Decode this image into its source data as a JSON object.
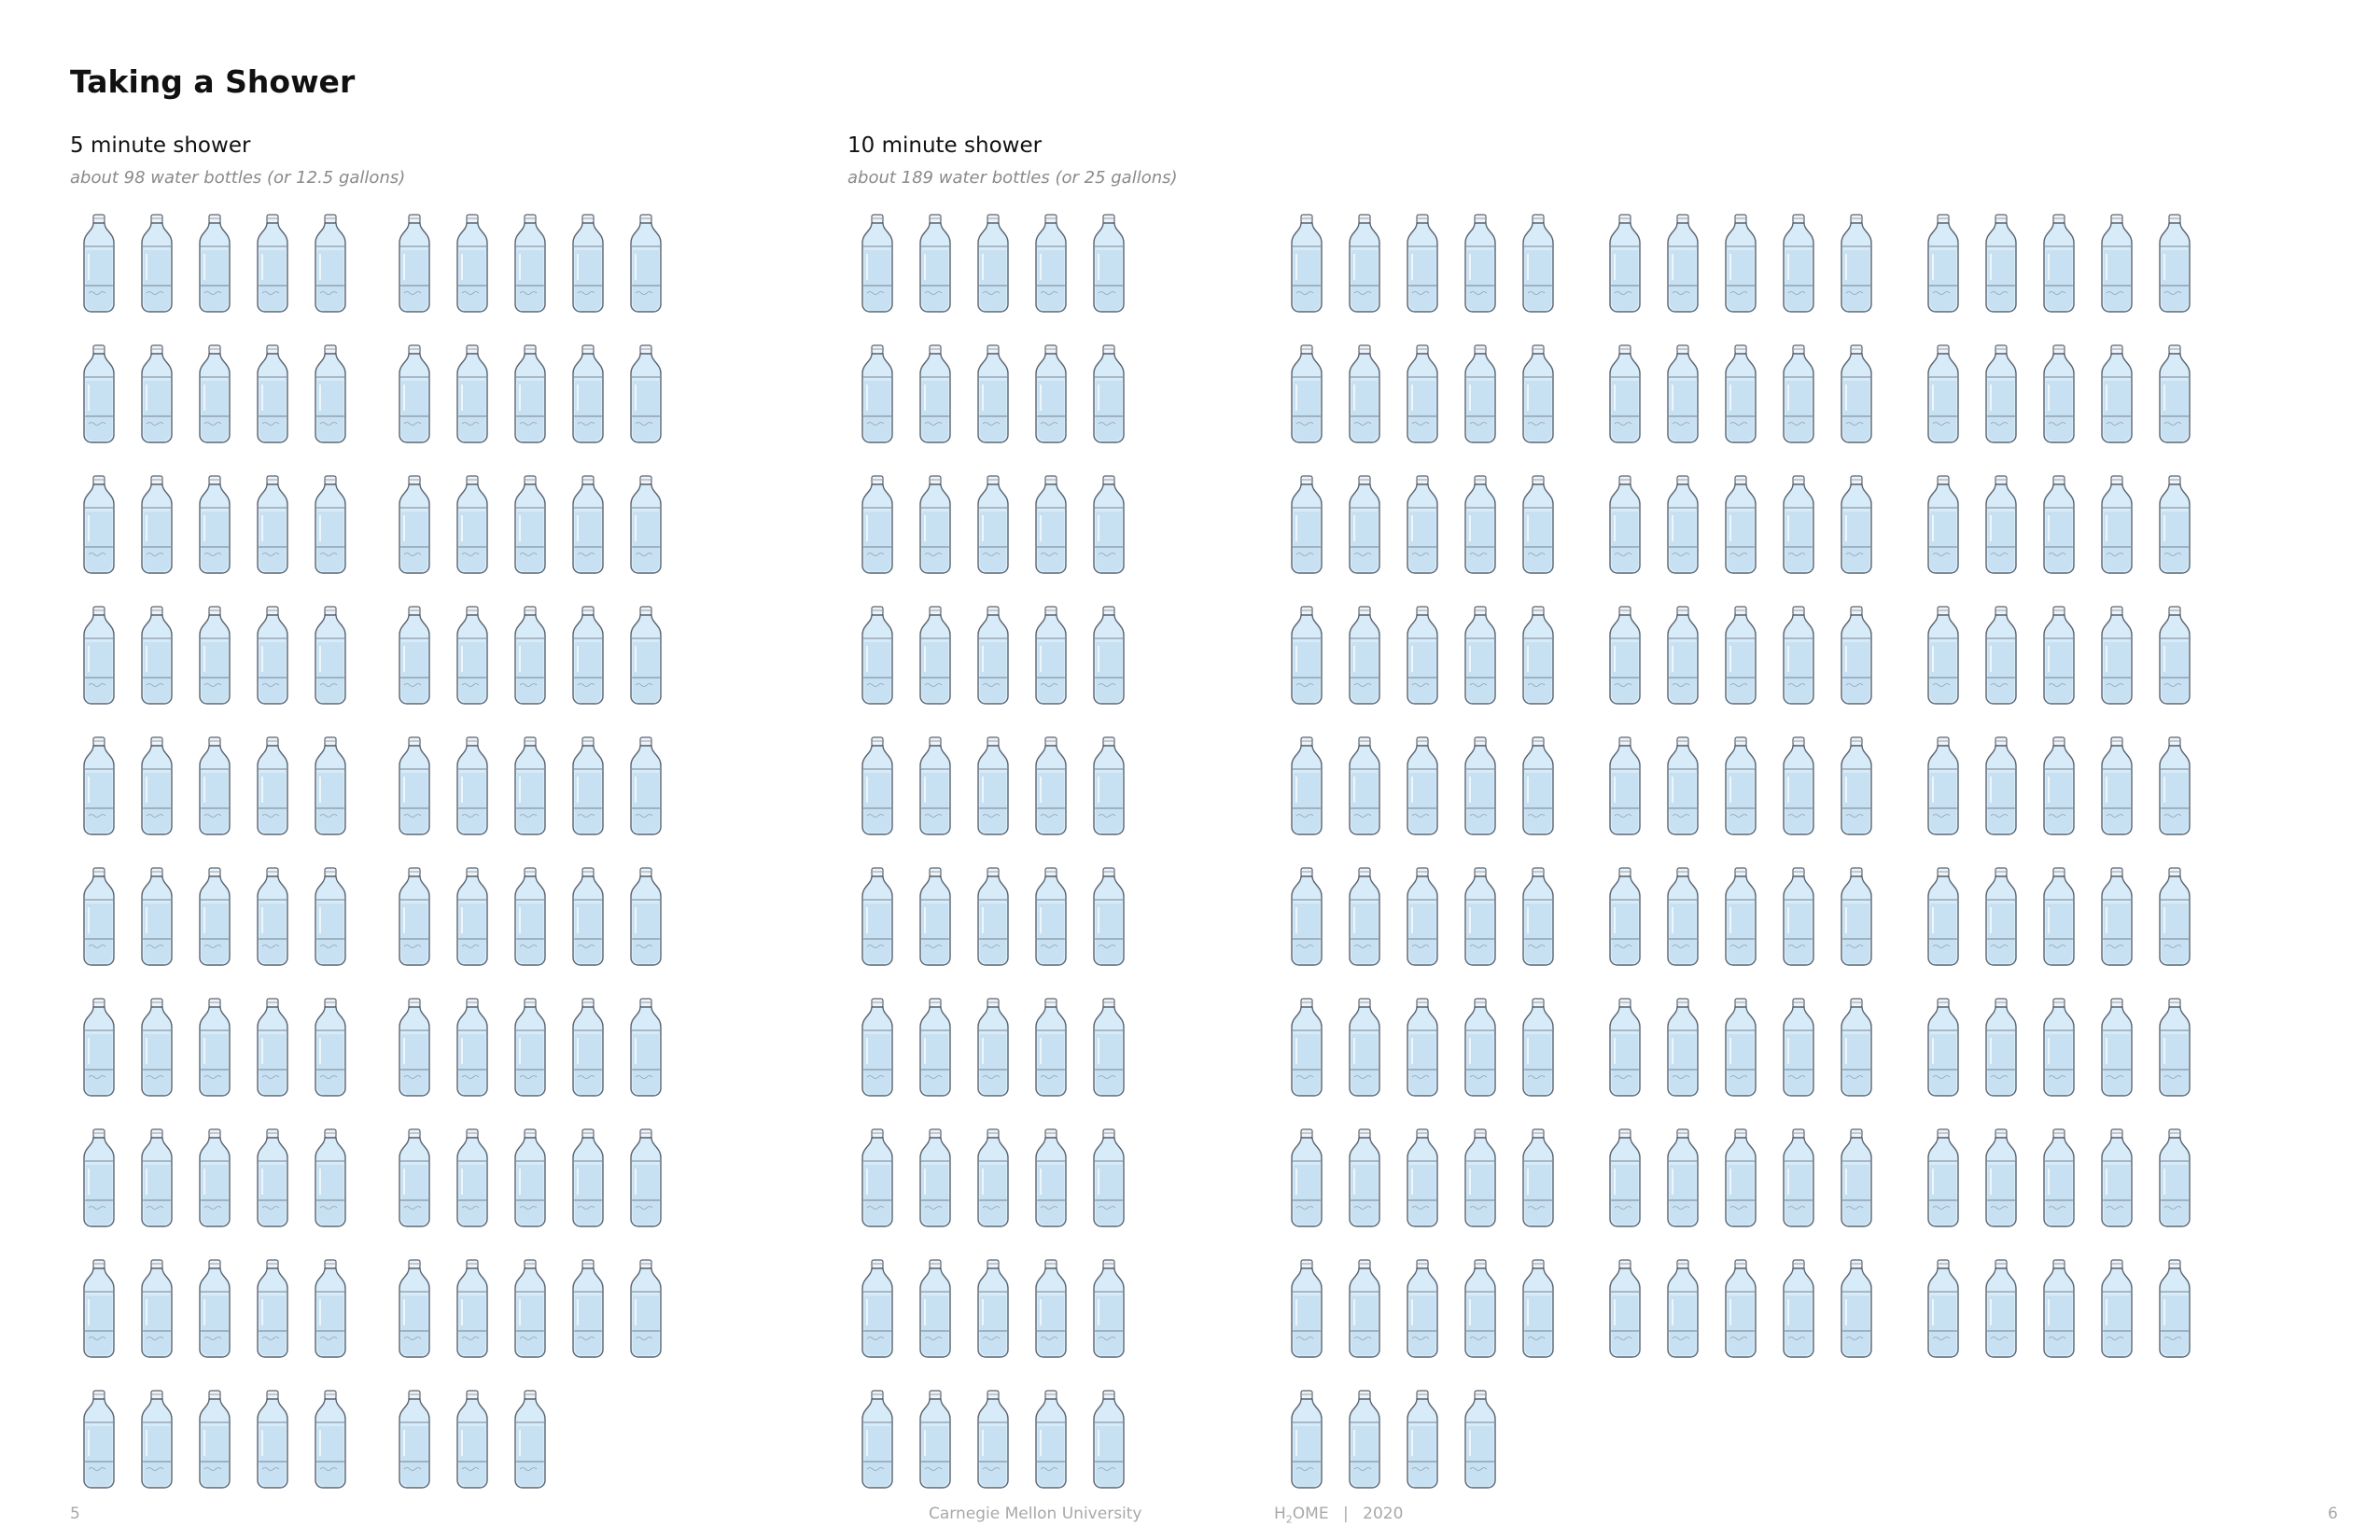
{
  "page": {
    "title": "Taking a Shower"
  },
  "sections": [
    {
      "heading": "5 minute shower",
      "subtitle": "about 98 water bottles (or 12.5 gallons)",
      "bottle_count": 98
    },
    {
      "heading": "10 minute shower",
      "subtitle": "about 189 water bottles (or 25 gallons)",
      "bottle_count": 189
    }
  ],
  "footer": {
    "page_left": "5",
    "institution": "Carnegie Mellon University",
    "brand_prefix": "H",
    "brand_sub": "2",
    "brand_suffix": "OME",
    "separator": "|",
    "year": "2020",
    "page_right": "6"
  },
  "icon": "water-bottle-icon",
  "colors": {
    "water": "#d7ebf8",
    "water_dark": "#b9d8ef",
    "outline": "#5a6470",
    "subtitle": "#8a8a8a",
    "footer": "#a8a8a8"
  }
}
